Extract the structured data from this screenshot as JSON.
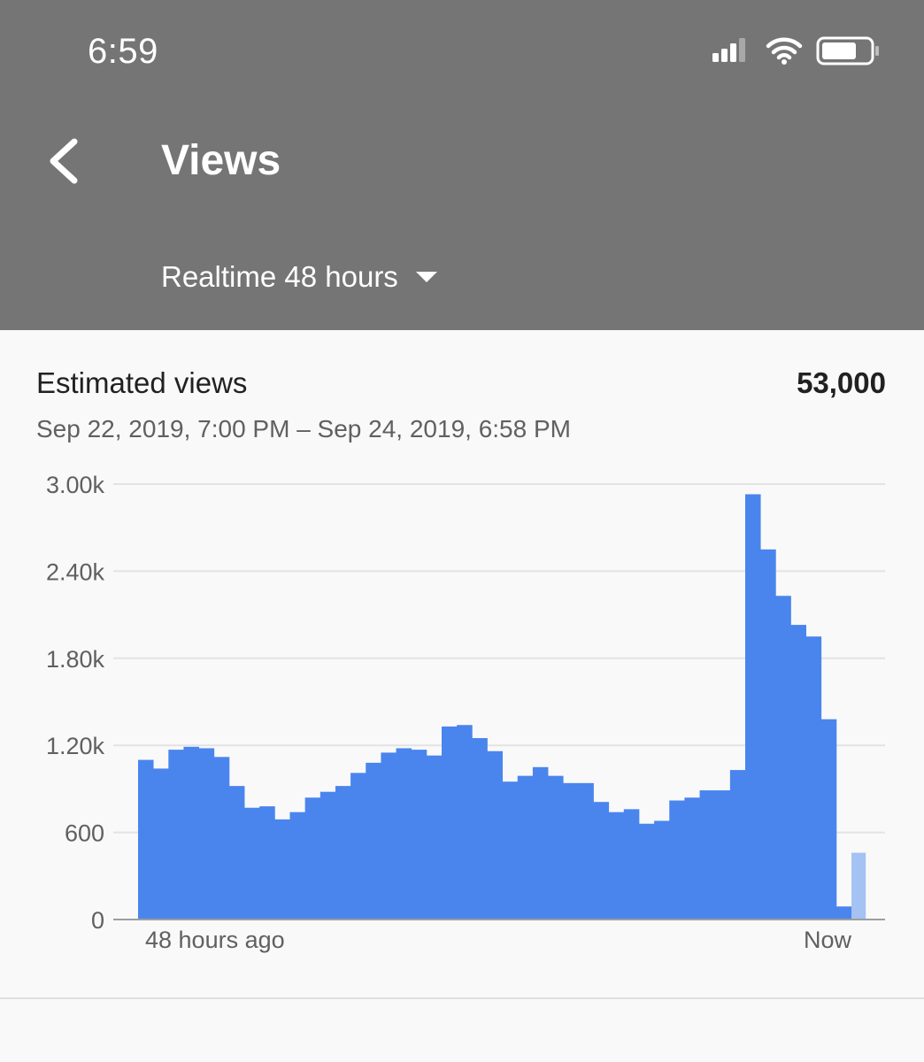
{
  "status_bar": {
    "time": "6:59"
  },
  "header": {
    "title": "Views",
    "range_label": "Realtime 48 hours"
  },
  "card": {
    "metric_label": "Estimated views",
    "metric_value": "53,000",
    "date_range": "Sep 22, 2019, 7:00 PM – Sep 24, 2019, 6:58 PM"
  },
  "colors": {
    "header_bg": "#757575",
    "bar": "#4a85ee",
    "bar_partial": "#a4c2f4"
  },
  "icons": [
    "cellular-signal-icon",
    "wifi-icon",
    "battery-icon",
    "back-arrow-icon",
    "dropdown-caret-icon"
  ],
  "chart_data": {
    "type": "bar",
    "x_tick_labels": [
      "48 hours ago",
      "Now"
    ],
    "y_ticks": [
      "3.00k",
      "2.40k",
      "1.80k",
      "1.20k",
      "600",
      "0"
    ],
    "ylim": [
      0,
      3000
    ],
    "grid": true,
    "values": [
      1100,
      1040,
      1170,
      1190,
      1180,
      1120,
      920,
      770,
      780,
      690,
      740,
      840,
      880,
      920,
      1010,
      1080,
      1150,
      1180,
      1170,
      1130,
      1330,
      1340,
      1250,
      1160,
      950,
      990,
      1050,
      990,
      940,
      940,
      810,
      740,
      760,
      660,
      680,
      820,
      840,
      890,
      890,
      1030,
      2930,
      2550,
      2230,
      2030,
      1950,
      1380,
      90,
      460
    ],
    "partial_last_bar": true
  }
}
